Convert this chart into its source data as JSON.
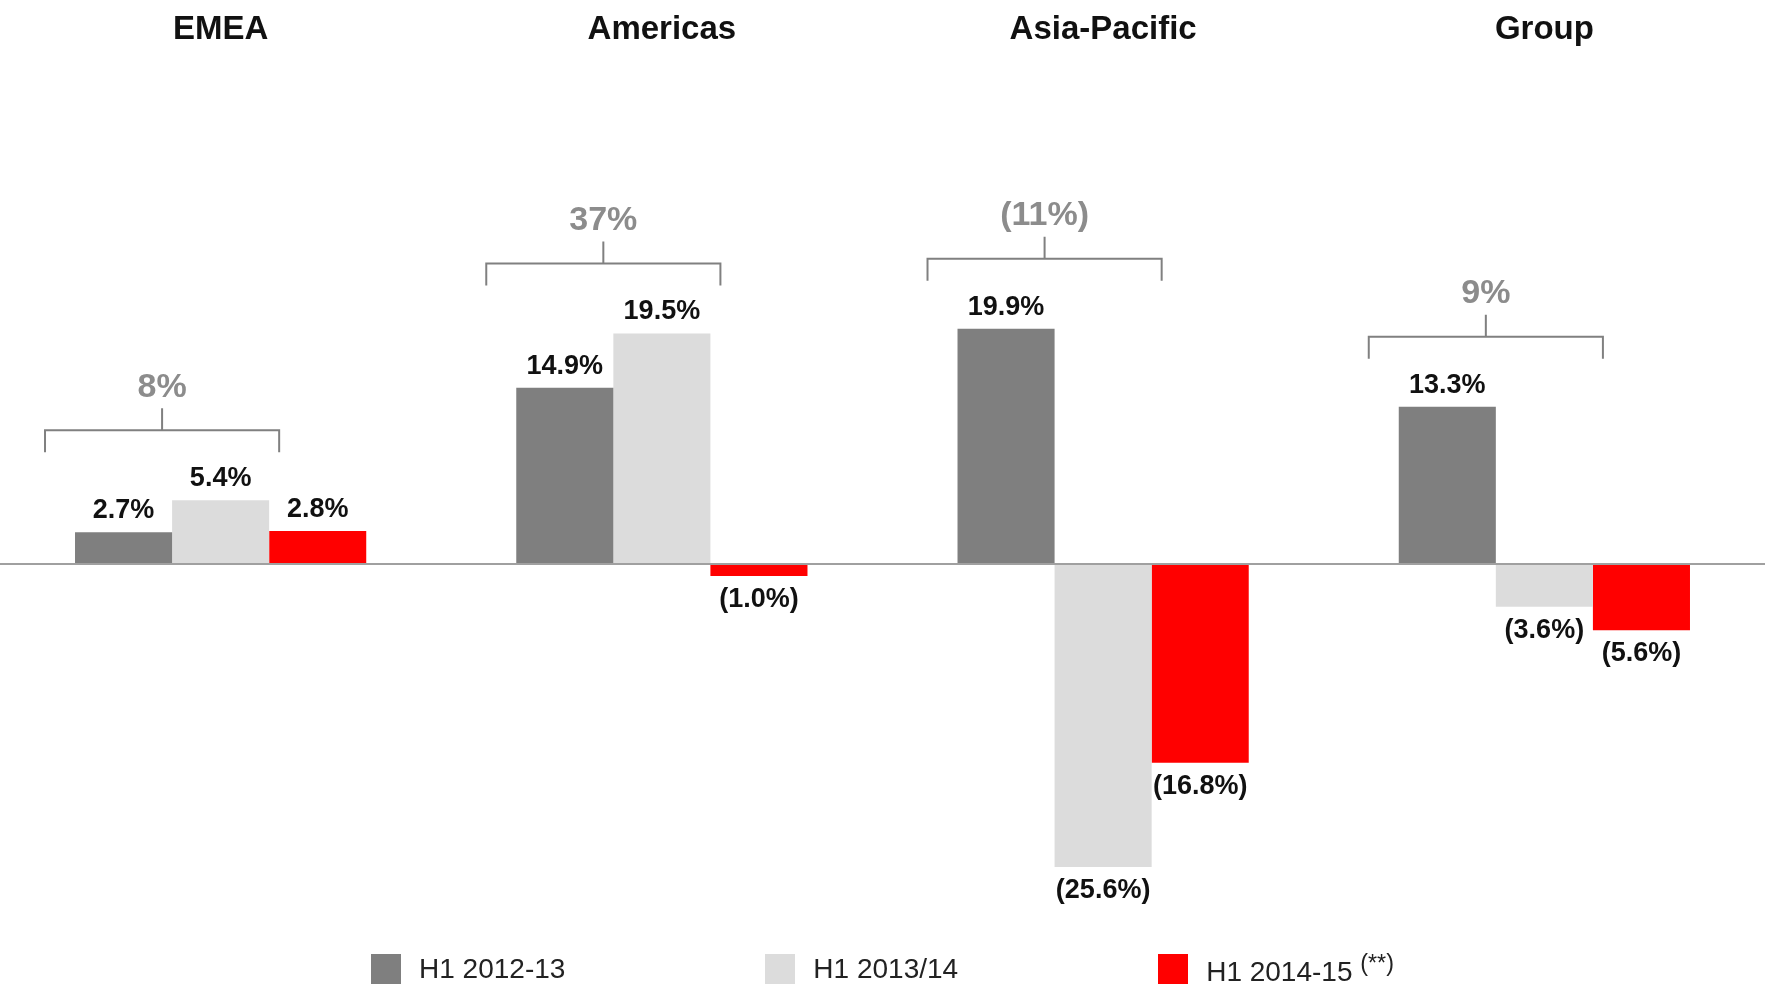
{
  "chart_data": {
    "type": "bar",
    "categories": [
      "EMEA",
      "Americas",
      "Asia-Pacific",
      "Group"
    ],
    "series": [
      {
        "name": "H1 2012-13",
        "color": "#7f7f7f",
        "values": [
          2.7,
          14.9,
          19.9,
          13.3
        ],
        "value_labels": [
          "2.7%",
          "14.9%",
          "19.9%",
          "13.3%"
        ]
      },
      {
        "name": "H1 2013/14",
        "color": "#dcdcdc",
        "values": [
          5.4,
          19.5,
          -25.6,
          -3.6
        ],
        "value_labels": [
          "5.4%",
          "19.5%",
          "(25.6%)",
          "(3.6%)"
        ]
      },
      {
        "name": "H1 2014-15 $^{(**)}$",
        "color": "#ff0000",
        "values": [
          2.8,
          -1.0,
          -16.8,
          -5.6
        ],
        "value_labels": [
          "2.8%",
          "(1.0%)",
          "(16.8%)",
          "(5.6%)"
        ]
      }
    ],
    "annotations": [
      "8%",
      "37%",
      "(11%)",
      "9%"
    ],
    "legend": "bottom",
    "grid": false,
    "tick_labels": "x"
  }
}
